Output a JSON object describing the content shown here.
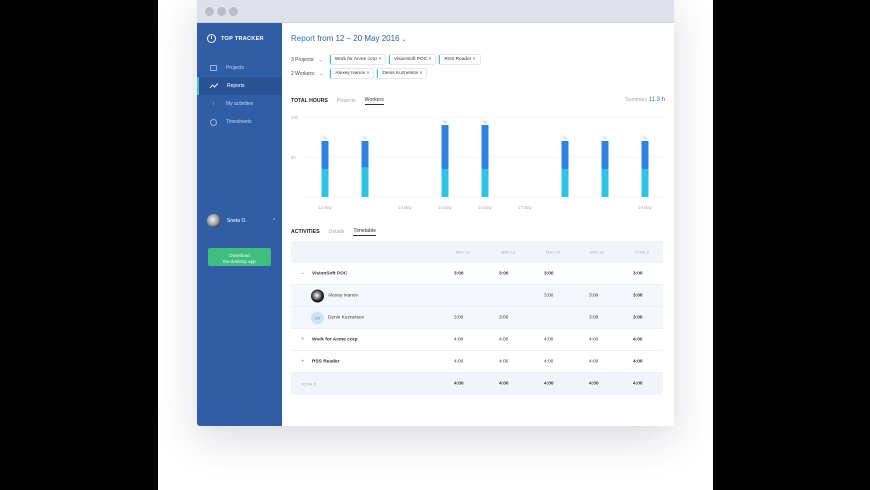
{
  "app": {
    "brand": "TOP TRACKER"
  },
  "sidebar": {
    "items": [
      {
        "label": "Projects",
        "icon": "folder-icon"
      },
      {
        "label": "Reports",
        "icon": "chart-line-icon",
        "active": true
      },
      {
        "label": "My activities",
        "icon": "info-icon"
      },
      {
        "label": "Timesheets",
        "icon": "clock-icon"
      }
    ],
    "user": {
      "name": "Sneta O.",
      "caret": "^"
    },
    "download_label_1": "Download",
    "download_label_2": "the desktop app"
  },
  "report": {
    "prefix": "Report",
    "range": "from 12 – 20 May 2016",
    "caret": "⌄"
  },
  "filters": {
    "projects_label": "3 Projects:",
    "projects": [
      "Work for Acme corp",
      "VisionSoft POC",
      "RSS Reader"
    ],
    "workers_label": "2 Workers:",
    "workers": [
      "Alexey Ivanov",
      "Denis Kuznetsov"
    ]
  },
  "hours": {
    "title": "TOTAL HOURS",
    "tabs": [
      "Projects",
      "Workers"
    ],
    "summary_label": "Summary",
    "summary_value": "11.3 h"
  },
  "chart_data": {
    "type": "bar",
    "categories": [
      "12 May",
      "13 May",
      "14 May",
      "15 May",
      "16 May",
      "17 May",
      "18 May",
      "19 May",
      "20 May"
    ],
    "tick_labels": [
      "12 May",
      "",
      "14 May",
      "15 May",
      "16 May",
      "17 May",
      "",
      "",
      "19 May"
    ],
    "y_ticks": [
      "10h",
      "5h"
    ],
    "ylim": [
      0,
      10
    ],
    "bar_labels": [
      "7h",
      "7h",
      "",
      "9h",
      "9h",
      "",
      "7h",
      "7h",
      "7h"
    ],
    "series": [
      {
        "values": [
          3.5,
          3.7,
          0,
          3.5,
          3.5,
          0,
          3.5,
          3.5,
          3.5
        ],
        "color": "#2fc3e6"
      },
      {
        "values": [
          3.5,
          3.3,
          0,
          5.5,
          5.5,
          0,
          3.5,
          3.5,
          3.5
        ],
        "color": "#2d83e0"
      }
    ],
    "grid": true
  },
  "activities": {
    "title": "ACTIVITIES",
    "tabs": [
      "Details",
      "Timetable"
    ],
    "columns": [
      "MAY 12",
      "MAY 13",
      "MAY 14",
      "MAY 15",
      "TOTALS"
    ],
    "rows": [
      {
        "name": "VisionSoft POC",
        "expander": "–",
        "values": [
          "3:00",
          "3:00",
          "3:00",
          "",
          "3:00"
        ]
      },
      {
        "name": "Alexey Ivanov",
        "values": [
          "",
          "",
          "3:00",
          "3:00",
          "3:00"
        ]
      },
      {
        "name": "Denis Kuznetsov",
        "initials": "DK",
        "values": [
          "3:00",
          "3:00",
          "",
          "3:00",
          "3:00"
        ]
      },
      {
        "name": "Work for Acme corp",
        "expander": "+",
        "values": [
          "4:00",
          "4:00",
          "4:00",
          "4:00",
          "4:00"
        ]
      },
      {
        "name": "RSS Reader",
        "expander": "+",
        "values": [
          "4:00",
          "4:00",
          "4:00",
          "4:00",
          "4:00"
        ]
      }
    ],
    "totals_label": "TOTALS",
    "totals": [
      "4:00",
      "4:00",
      "4:00",
      "4:00",
      "4:00"
    ]
  }
}
